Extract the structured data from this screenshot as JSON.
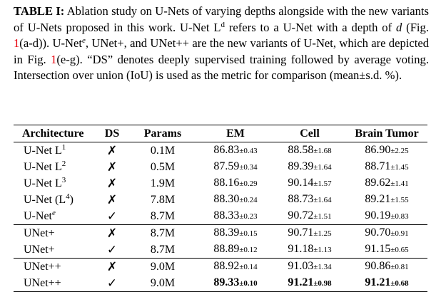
{
  "caption": {
    "label": "TABLE I:",
    "text_1": " Ablation study on U-Nets of varying depths alongside with the new variants of U-Nets proposed in this work. U-Net L",
    "sup_d": "d",
    "text_2": " refers to a U-Net with a depth of ",
    "var_d": "d",
    "text_3": " (Fig. ",
    "ref_1": "1",
    "text_4": "(a-d)). U-Net",
    "sup_e": "e",
    "text_5": ", UNet+, and UNet++ are the new variants of U-Net, which are depicted in Fig. ",
    "ref_2": "1",
    "text_6": "(e-g). “DS” denotes deeply supervised training followed by average voting. Intersection over union (IoU) is used as the metric for comparison (mean±s.d. %)."
  },
  "table": {
    "headers": [
      "Architecture",
      "DS",
      "Params",
      "EM",
      "Cell",
      "Brain Tumor"
    ],
    "rows": [
      {
        "arch": "U-Net L",
        "sup": "1",
        "arch_suffix": "",
        "ds": "✗",
        "params": "0.1M",
        "em": "86.83",
        "em_sd": "±0.43",
        "cell": "88.58",
        "cell_sd": "±1.68",
        "bt": "86.90",
        "bt_sd": "±2.25"
      },
      {
        "arch": "U-Net L",
        "sup": "2",
        "arch_suffix": "",
        "ds": "✗",
        "params": "0.5M",
        "em": "87.59",
        "em_sd": "±0.34",
        "cell": "89.39",
        "cell_sd": "±1.64",
        "bt": "88.71",
        "bt_sd": "±1.45"
      },
      {
        "arch": "U-Net L",
        "sup": "3",
        "arch_suffix": "",
        "ds": "✗",
        "params": "1.9M",
        "em": "88.16",
        "em_sd": "±0.29",
        "cell": "90.14",
        "cell_sd": "±1.57",
        "bt": "89.62",
        "bt_sd": "±1.41"
      },
      {
        "arch": "U-Net (L",
        "sup": "4",
        "arch_suffix": ")",
        "ds": "✗",
        "params": "7.8M",
        "em": "88.30",
        "em_sd": "±0.24",
        "cell": "88.73",
        "cell_sd": "±1.64",
        "bt": "89.21",
        "bt_sd": "±1.55"
      },
      {
        "arch": "U-Net",
        "sup": "e",
        "arch_suffix": "",
        "ds": "✓",
        "params": "8.7M",
        "em": "88.33",
        "em_sd": "±0.23",
        "cell": "90.72",
        "cell_sd": "±1.51",
        "bt": "90.19",
        "bt_sd": "±0.83"
      },
      {
        "arch": "UNet+",
        "sup": "",
        "arch_suffix": "",
        "ds": "✗",
        "params": "8.7M",
        "em": "88.39",
        "em_sd": "±0.15",
        "cell": "90.71",
        "cell_sd": "±1.25",
        "bt": "90.70",
        "bt_sd": "±0.91"
      },
      {
        "arch": "UNet+",
        "sup": "",
        "arch_suffix": "",
        "ds": "✓",
        "params": "8.7M",
        "em": "88.89",
        "em_sd": "±0.12",
        "cell": "91.18",
        "cell_sd": "±1.13",
        "bt": "91.15",
        "bt_sd": "±0.65"
      },
      {
        "arch": "UNet++",
        "sup": "",
        "arch_suffix": "",
        "ds": "✗",
        "params": "9.0M",
        "em": "88.92",
        "em_sd": "±0.14",
        "cell": "91.03",
        "cell_sd": "±1.34",
        "bt": "90.86",
        "bt_sd": "±0.81"
      },
      {
        "arch": "UNet++",
        "sup": "",
        "arch_suffix": "",
        "ds": "✓",
        "params": "9.0M",
        "em": "89.33",
        "em_sd": "±0.10",
        "cell": "91.21",
        "cell_sd": "±0.98",
        "bt": "91.21",
        "bt_sd": "±0.68"
      }
    ]
  }
}
